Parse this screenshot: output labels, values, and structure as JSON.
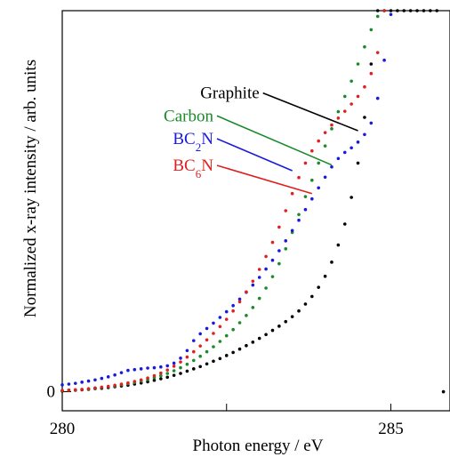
{
  "chart_data": {
    "type": "scatter",
    "xlabel": "Photon energy / eV",
    "ylabel": "Normalized x-ray intensity / arb. units",
    "xlim": [
      280.0,
      285.9
    ],
    "ylim": [
      -0.05,
      1.0
    ],
    "x_ticks": [
      280,
      282.5,
      285
    ],
    "x_tick_labels": [
      "280",
      "",
      "285"
    ],
    "y_ticks": [
      0
    ],
    "y_tick_labels": [
      "0"
    ],
    "grid": false,
    "legend_placement": "center (labels with leader lines)",
    "series": [
      {
        "name": "Graphite",
        "color": "#000000",
        "sub": "",
        "x": [
          280.0,
          280.1,
          280.2,
          280.3,
          280.4,
          280.5,
          280.6,
          280.7,
          280.8,
          280.9,
          281.0,
          281.1,
          281.2,
          281.3,
          281.4,
          281.5,
          281.6,
          281.7,
          281.8,
          281.9,
          282.0,
          282.1,
          282.2,
          282.3,
          282.4,
          282.5,
          282.6,
          282.7,
          282.8,
          282.9,
          283.0,
          283.1,
          283.2,
          283.3,
          283.4,
          283.5,
          283.6,
          283.7,
          283.8,
          283.9,
          284.0,
          284.1,
          284.2,
          284.3,
          284.4,
          284.5,
          284.6,
          284.7,
          284.8,
          284.9,
          285.0,
          285.1,
          285.2,
          285.3,
          285.4,
          285.5,
          285.6,
          285.7,
          285.8
        ],
        "y": [
          0.002,
          0.003,
          0.004,
          0.005,
          0.006,
          0.008,
          0.009,
          0.011,
          0.013,
          0.015,
          0.017,
          0.02,
          0.023,
          0.026,
          0.03,
          0.034,
          0.038,
          0.043,
          0.048,
          0.054,
          0.06,
          0.066,
          0.073,
          0.08,
          0.087,
          0.095,
          0.103,
          0.112,
          0.121,
          0.13,
          0.14,
          0.15,
          0.161,
          0.172,
          0.184,
          0.197,
          0.212,
          0.23,
          0.25,
          0.274,
          0.303,
          0.34,
          0.385,
          0.44,
          0.51,
          0.6,
          0.72,
          0.86,
          1.0,
          1.0,
          1.0,
          1.0,
          1.0,
          1.0,
          1.0,
          1.0,
          1.0,
          1.0,
          0.0
        ]
      },
      {
        "name": "Carbon",
        "color": "#1a8a2a",
        "sub": "",
        "x": [
          280.0,
          280.1,
          280.2,
          280.3,
          280.4,
          280.5,
          280.6,
          280.7,
          280.8,
          280.9,
          281.0,
          281.1,
          281.2,
          281.3,
          281.4,
          281.5,
          281.6,
          281.7,
          281.8,
          281.9,
          282.0,
          282.1,
          282.2,
          282.3,
          282.4,
          282.5,
          282.6,
          282.7,
          282.8,
          282.9,
          283.0,
          283.1,
          283.2,
          283.3,
          283.4,
          283.5,
          283.6,
          283.7,
          283.8,
          283.9,
          284.0,
          284.1,
          284.2,
          284.3,
          284.4,
          284.5,
          284.6,
          284.7,
          284.8,
          284.9
        ],
        "y": [
          0.003,
          0.004,
          0.005,
          0.006,
          0.007,
          0.009,
          0.011,
          0.013,
          0.015,
          0.018,
          0.021,
          0.024,
          0.028,
          0.032,
          0.037,
          0.042,
          0.048,
          0.055,
          0.063,
          0.072,
          0.082,
          0.093,
          0.105,
          0.118,
          0.132,
          0.147,
          0.163,
          0.181,
          0.2,
          0.221,
          0.245,
          0.272,
          0.302,
          0.336,
          0.375,
          0.418,
          0.465,
          0.512,
          0.555,
          0.6,
          0.645,
          0.69,
          0.735,
          0.775,
          0.815,
          0.86,
          0.905,
          0.95,
          0.985,
          1.0
        ]
      },
      {
        "name": "BC2N",
        "color": "#1a1adc",
        "sub": "2",
        "x": [
          280.0,
          280.1,
          280.2,
          280.3,
          280.4,
          280.5,
          280.6,
          280.7,
          280.8,
          280.9,
          281.0,
          281.1,
          281.2,
          281.3,
          281.4,
          281.5,
          281.6,
          281.7,
          281.8,
          281.9,
          282.0,
          282.1,
          282.2,
          282.3,
          282.4,
          282.5,
          282.6,
          282.7,
          282.8,
          282.9,
          283.0,
          283.1,
          283.2,
          283.3,
          283.4,
          283.5,
          283.6,
          283.7,
          283.8,
          283.9,
          284.0,
          284.1,
          284.2,
          284.3,
          284.4,
          284.5,
          284.6,
          284.7,
          284.8,
          284.9,
          285.0
        ],
        "y": [
          0.018,
          0.02,
          0.022,
          0.025,
          0.028,
          0.031,
          0.035,
          0.039,
          0.044,
          0.05,
          0.056,
          0.058,
          0.06,
          0.062,
          0.063,
          0.065,
          0.068,
          0.075,
          0.088,
          0.108,
          0.134,
          0.152,
          0.166,
          0.18,
          0.195,
          0.21,
          0.226,
          0.243,
          0.261,
          0.28,
          0.3,
          0.322,
          0.345,
          0.37,
          0.396,
          0.423,
          0.45,
          0.478,
          0.506,
          0.535,
          0.563,
          0.59,
          0.612,
          0.628,
          0.64,
          0.655,
          0.675,
          0.705,
          0.77,
          0.87,
          0.99
        ]
      },
      {
        "name": "BC6N",
        "color": "#e02020",
        "sub": "6",
        "x": [
          280.0,
          280.1,
          280.2,
          280.3,
          280.4,
          280.5,
          280.6,
          280.7,
          280.8,
          280.9,
          281.0,
          281.1,
          281.2,
          281.3,
          281.4,
          281.5,
          281.6,
          281.7,
          281.8,
          281.9,
          282.0,
          282.1,
          282.2,
          282.3,
          282.4,
          282.5,
          282.6,
          282.7,
          282.8,
          282.9,
          283.0,
          283.1,
          283.2,
          283.3,
          283.4,
          283.5,
          283.6,
          283.7,
          283.8,
          283.9,
          284.0,
          284.1,
          284.2,
          284.3,
          284.4,
          284.5,
          284.6,
          284.7,
          284.8,
          284.9
        ],
        "y": [
          0.003,
          0.004,
          0.005,
          0.006,
          0.008,
          0.01,
          0.012,
          0.014,
          0.017,
          0.02,
          0.023,
          0.027,
          0.031,
          0.036,
          0.042,
          0.049,
          0.057,
          0.067,
          0.078,
          0.091,
          0.105,
          0.12,
          0.136,
          0.153,
          0.171,
          0.19,
          0.212,
          0.236,
          0.262,
          0.29,
          0.321,
          0.355,
          0.392,
          0.432,
          0.475,
          0.52,
          0.562,
          0.6,
          0.632,
          0.658,
          0.68,
          0.7,
          0.718,
          0.736,
          0.755,
          0.775,
          0.8,
          0.835,
          0.89,
          1.0
        ]
      }
    ],
    "labels": [
      {
        "series": "Graphite",
        "text": "Graphite",
        "sub": "",
        "label_anchor_x": 283.0,
        "label_anchor_y": 0.77,
        "line_end_x": 284.5,
        "line_end_y": 0.685
      },
      {
        "series": "Carbon",
        "text": "Carbon",
        "sub": "",
        "label_anchor_x": 282.3,
        "label_anchor_y": 0.71,
        "line_end_x": 284.1,
        "line_end_y": 0.595
      },
      {
        "series": "BC2N",
        "text": "BC",
        "sub": "2",
        "post": "N",
        "label_anchor_x": 282.3,
        "label_anchor_y": 0.65,
        "line_end_x": 283.5,
        "line_end_y": 0.58
      },
      {
        "series": "BC6N",
        "text": "BC",
        "sub": "6",
        "post": "N",
        "label_anchor_x": 282.3,
        "label_anchor_y": 0.58,
        "line_end_x": 283.8,
        "line_end_y": 0.52
      }
    ]
  }
}
